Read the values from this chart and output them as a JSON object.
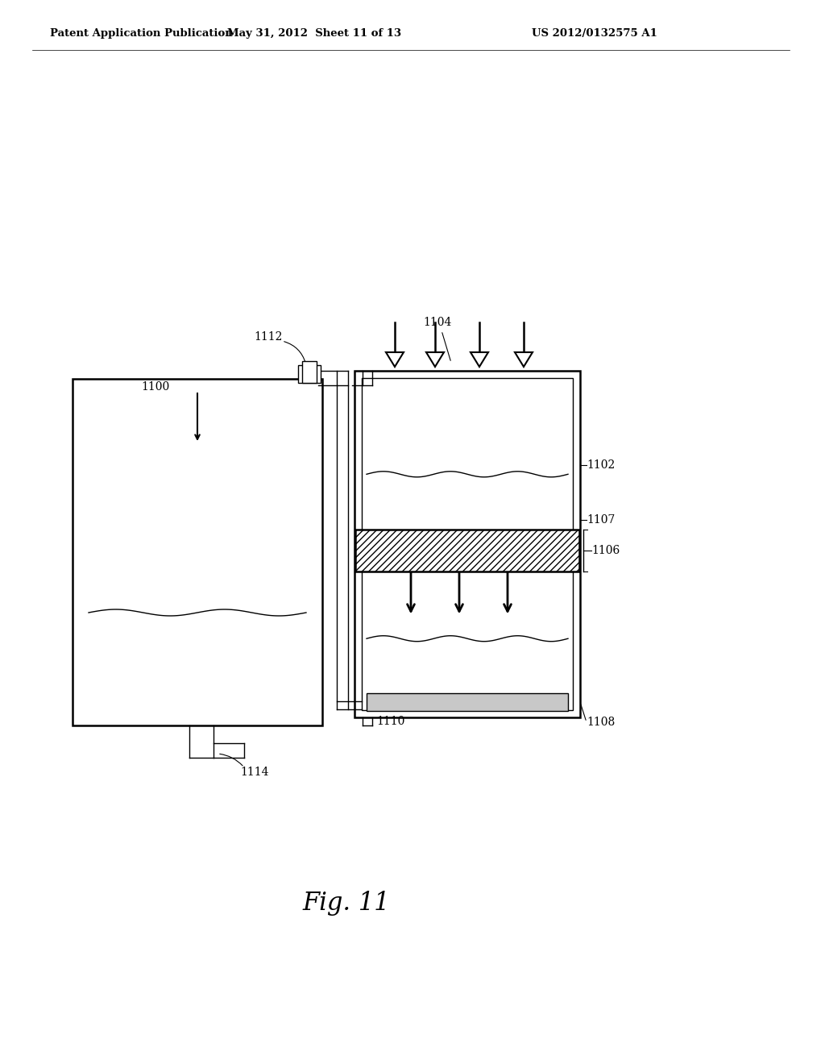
{
  "bg_color": "#ffffff",
  "line_color": "#000000",
  "header_left": "Patent Application Publication",
  "header_center": "May 31, 2012  Sheet 11 of 13",
  "header_right": "US 2012/0132575 A1",
  "fig_label": "Fig. 11"
}
